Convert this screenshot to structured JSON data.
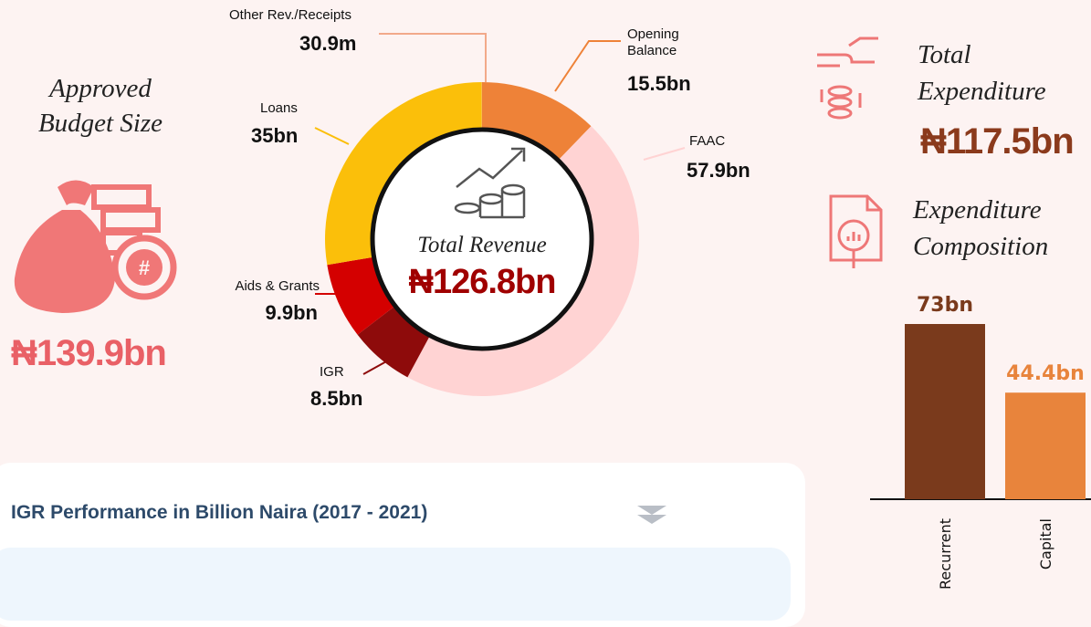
{
  "budget": {
    "title": "Approved Budget Size",
    "value_label": "₦139.9bn"
  },
  "revenue": {
    "type": "pie",
    "title": "Total Revenue",
    "total_label": "₦126.8bn",
    "categories": [
      "Opening Balance",
      "FAAC",
      "IGR",
      "Aids & Grants",
      "Loans",
      "Other Rev./Receipts"
    ],
    "values": [
      15.5,
      57.9,
      8.5,
      9.9,
      35,
      0.0309
    ],
    "value_labels": [
      "15.5bn",
      "57.9bn",
      "8.5bn",
      "9.9bn",
      "35bn",
      "30.9m"
    ],
    "colors": [
      "#ee8238",
      "#ffd3d3",
      "#8e0b0b",
      "#d40000",
      "#fbbf0a",
      "#f2a98a"
    ]
  },
  "expenditure": {
    "title": "Total Expenditure",
    "value_label": "₦117.5bn"
  },
  "composition": {
    "type": "bar",
    "title": "Expenditure Composition",
    "categories": [
      "Recurrent",
      "Capital"
    ],
    "values": [
      73,
      44.4
    ],
    "value_labels": [
      "73bn",
      "44.4bn"
    ],
    "colors": [
      "#7a3a1c",
      "#e8843c"
    ],
    "ylim": [
      0,
      73
    ]
  },
  "igr": {
    "title": "IGR Performance in Billion Naira (2017 - 2021)"
  }
}
